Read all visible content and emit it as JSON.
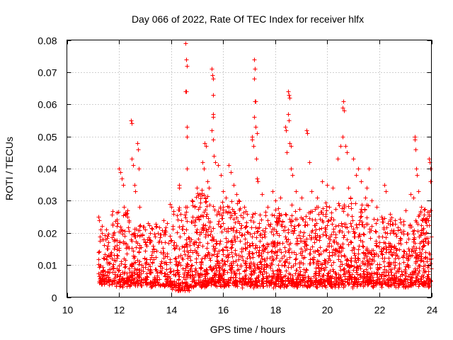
{
  "chart_data": {
    "type": "scatter",
    "title": "Day 066 of 2022, Rate Of TEC Index for receiver hlfx",
    "xlabel": "GPS time / hours",
    "ylabel": "ROTI / TECUs",
    "xlim": [
      10,
      24
    ],
    "ylim": [
      0,
      0.08
    ],
    "xticks": [
      10,
      12,
      14,
      16,
      18,
      20,
      22,
      24
    ],
    "xtick_labels": [
      "10",
      "12",
      "14",
      "16",
      "18",
      "20",
      "22",
      "24"
    ],
    "yticks": [
      0,
      0.01,
      0.02,
      0.03,
      0.04,
      0.05,
      0.06,
      0.07,
      0.08
    ],
    "ytick_labels": [
      "0",
      "0.01",
      "0.02",
      "0.03",
      "0.04",
      "0.05",
      "0.06",
      "0.07",
      "0.08"
    ],
    "grid": true,
    "marker": "+",
    "color": "#ff0000",
    "series": [
      {
        "name": "ROTI",
        "points": [
          [
            11.22,
            0.025
          ],
          [
            11.25,
            0.024
          ],
          [
            11.3,
            0.021
          ],
          [
            11.35,
            0.02
          ],
          [
            11.4,
            0.018
          ],
          [
            11.5,
            0.021
          ],
          [
            11.55,
            0.019
          ],
          [
            11.6,
            0.017
          ],
          [
            11.95,
            0.023
          ],
          [
            12.0,
            0.04
          ],
          [
            12.05,
            0.039
          ],
          [
            12.1,
            0.037
          ],
          [
            12.15,
            0.035
          ],
          [
            12.2,
            0.028
          ],
          [
            12.25,
            0.026
          ],
          [
            12.45,
            0.055
          ],
          [
            12.48,
            0.054
          ],
          [
            12.5,
            0.043
          ],
          [
            12.55,
            0.041
          ],
          [
            12.6,
            0.035
          ],
          [
            12.62,
            0.033
          ],
          [
            12.7,
            0.048
          ],
          [
            12.72,
            0.046
          ],
          [
            12.75,
            0.04
          ],
          [
            12.78,
            0.028
          ],
          [
            13.0,
            0.021
          ],
          [
            13.2,
            0.02
          ],
          [
            13.4,
            0.022
          ],
          [
            13.5,
            0.02
          ],
          [
            13.7,
            0.024
          ],
          [
            13.85,
            0.023
          ],
          [
            13.95,
            0.029
          ],
          [
            14.0,
            0.028
          ],
          [
            14.1,
            0.026
          ],
          [
            14.3,
            0.035
          ],
          [
            14.32,
            0.034
          ],
          [
            14.4,
            0.024
          ],
          [
            14.55,
            0.079
          ],
          [
            14.57,
            0.074
          ],
          [
            14.6,
            0.072
          ],
          [
            14.55,
            0.064
          ],
          [
            14.58,
            0.064
          ],
          [
            14.62,
            0.053
          ],
          [
            14.6,
            0.05
          ],
          [
            14.6,
            0.04
          ],
          [
            14.8,
            0.03
          ],
          [
            14.9,
            0.028
          ],
          [
            15.0,
            0.034
          ],
          [
            15.1,
            0.032
          ],
          [
            15.2,
            0.042
          ],
          [
            15.25,
            0.04
          ],
          [
            15.3,
            0.048
          ],
          [
            15.35,
            0.047
          ],
          [
            15.4,
            0.036
          ],
          [
            15.45,
            0.034
          ],
          [
            15.55,
            0.071
          ],
          [
            15.58,
            0.069
          ],
          [
            15.6,
            0.068
          ],
          [
            15.62,
            0.063
          ],
          [
            15.6,
            0.057
          ],
          [
            15.62,
            0.056
          ],
          [
            15.55,
            0.052
          ],
          [
            15.6,
            0.049
          ],
          [
            15.65,
            0.044
          ],
          [
            15.7,
            0.042
          ],
          [
            15.8,
            0.041
          ],
          [
            15.9,
            0.038
          ],
          [
            16.0,
            0.033
          ],
          [
            16.1,
            0.031
          ],
          [
            16.2,
            0.041
          ],
          [
            16.3,
            0.039
          ],
          [
            16.4,
            0.035
          ],
          [
            16.5,
            0.032
          ],
          [
            16.6,
            0.03
          ],
          [
            16.8,
            0.028
          ],
          [
            17.1,
            0.05
          ],
          [
            17.12,
            0.049
          ],
          [
            17.15,
            0.047
          ],
          [
            17.2,
            0.074
          ],
          [
            17.22,
            0.071
          ],
          [
            17.2,
            0.068
          ],
          [
            17.22,
            0.061
          ],
          [
            17.25,
            0.061
          ],
          [
            17.2,
            0.056
          ],
          [
            17.25,
            0.053
          ],
          [
            17.3,
            0.051
          ],
          [
            17.28,
            0.043
          ],
          [
            17.3,
            0.037
          ],
          [
            17.32,
            0.036
          ],
          [
            17.5,
            0.032
          ],
          [
            17.7,
            0.028
          ],
          [
            17.9,
            0.033
          ],
          [
            18.0,
            0.03
          ],
          [
            18.2,
            0.031
          ],
          [
            18.4,
            0.053
          ],
          [
            18.42,
            0.052
          ],
          [
            18.45,
            0.045
          ],
          [
            18.5,
            0.064
          ],
          [
            18.52,
            0.063
          ],
          [
            18.55,
            0.062
          ],
          [
            18.5,
            0.057
          ],
          [
            18.52,
            0.055
          ],
          [
            18.55,
            0.048
          ],
          [
            18.6,
            0.047
          ],
          [
            18.6,
            0.04
          ],
          [
            18.65,
            0.038
          ],
          [
            18.8,
            0.033
          ],
          [
            19.0,
            0.031
          ],
          [
            19.2,
            0.052
          ],
          [
            19.22,
            0.051
          ],
          [
            19.3,
            0.042
          ],
          [
            19.4,
            0.033
          ],
          [
            19.6,
            0.031
          ],
          [
            19.8,
            0.036
          ],
          [
            20.0,
            0.035
          ],
          [
            20.2,
            0.034
          ],
          [
            20.4,
            0.043
          ],
          [
            20.5,
            0.047
          ],
          [
            20.6,
            0.059
          ],
          [
            20.62,
            0.061
          ],
          [
            20.65,
            0.058
          ],
          [
            20.6,
            0.05
          ],
          [
            20.7,
            0.047
          ],
          [
            20.75,
            0.045
          ],
          [
            20.8,
            0.034
          ],
          [
            20.9,
            0.031
          ],
          [
            21.0,
            0.043
          ],
          [
            21.1,
            0.038
          ],
          [
            21.2,
            0.04
          ],
          [
            21.3,
            0.036
          ],
          [
            21.5,
            0.034
          ],
          [
            21.6,
            0.04
          ],
          [
            21.7,
            0.03
          ],
          [
            21.9,
            0.028
          ],
          [
            22.2,
            0.035
          ],
          [
            22.25,
            0.033
          ],
          [
            22.4,
            0.026
          ],
          [
            22.6,
            0.024
          ],
          [
            22.8,
            0.021
          ],
          [
            23.0,
            0.027
          ],
          [
            23.2,
            0.032
          ],
          [
            23.3,
            0.031
          ],
          [
            23.35,
            0.05
          ],
          [
            23.37,
            0.049
          ],
          [
            23.4,
            0.046
          ],
          [
            23.42,
            0.04
          ],
          [
            23.45,
            0.038
          ],
          [
            23.5,
            0.033
          ],
          [
            23.6,
            0.028
          ],
          [
            23.75,
            0.024
          ],
          [
            23.9,
            0.043
          ],
          [
            23.92,
            0.042
          ],
          [
            23.95,
            0.04
          ],
          [
            23.97,
            0.036
          ],
          [
            24.0,
            0.034
          ]
        ],
        "bulk": [
          {
            "x0": 11.2,
            "x1": 11.6,
            "n": 80,
            "base": 0.005,
            "mean": 0.01,
            "max": 0.022
          },
          {
            "x0": 11.6,
            "x1": 12.4,
            "n": 160,
            "base": 0.004,
            "mean": 0.012,
            "max": 0.027
          },
          {
            "x0": 12.4,
            "x1": 13.2,
            "n": 150,
            "base": 0.004,
            "mean": 0.012,
            "max": 0.024
          },
          {
            "x0": 13.2,
            "x1": 14.0,
            "n": 140,
            "base": 0.004,
            "mean": 0.012,
            "max": 0.023
          },
          {
            "x0": 14.0,
            "x1": 14.8,
            "n": 170,
            "base": 0.003,
            "mean": 0.013,
            "max": 0.028
          },
          {
            "x0": 14.8,
            "x1": 15.8,
            "n": 250,
            "base": 0.004,
            "mean": 0.016,
            "max": 0.033
          },
          {
            "x0": 15.8,
            "x1": 16.8,
            "n": 240,
            "base": 0.004,
            "mean": 0.014,
            "max": 0.03
          },
          {
            "x0": 16.8,
            "x1": 17.6,
            "n": 180,
            "base": 0.004,
            "mean": 0.013,
            "max": 0.027
          },
          {
            "x0": 17.6,
            "x1": 18.6,
            "n": 220,
            "base": 0.004,
            "mean": 0.012,
            "max": 0.027
          },
          {
            "x0": 18.6,
            "x1": 19.6,
            "n": 220,
            "base": 0.004,
            "mean": 0.012,
            "max": 0.028
          },
          {
            "x0": 19.6,
            "x1": 20.6,
            "n": 230,
            "base": 0.004,
            "mean": 0.013,
            "max": 0.029
          },
          {
            "x0": 20.6,
            "x1": 21.6,
            "n": 230,
            "base": 0.004,
            "mean": 0.013,
            "max": 0.03
          },
          {
            "x0": 21.6,
            "x1": 22.6,
            "n": 210,
            "base": 0.004,
            "mean": 0.011,
            "max": 0.025
          },
          {
            "x0": 22.6,
            "x1": 23.4,
            "n": 170,
            "base": 0.004,
            "mean": 0.011,
            "max": 0.024
          },
          {
            "x0": 23.4,
            "x1": 24.0,
            "n": 150,
            "base": 0.004,
            "mean": 0.011,
            "max": 0.028
          }
        ]
      }
    ]
  }
}
